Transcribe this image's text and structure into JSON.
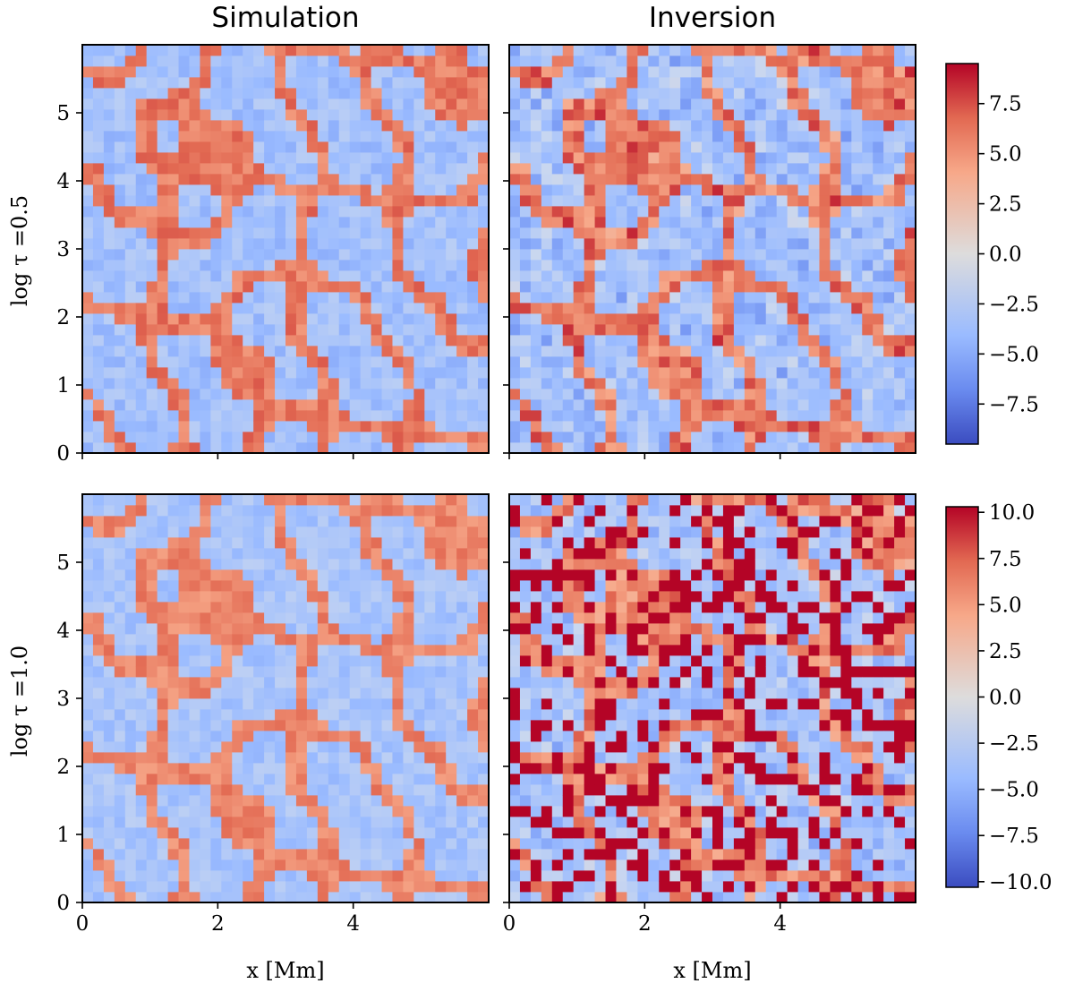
{
  "chart_data": {
    "type": "heatmap",
    "column_titles": [
      "Simulation",
      "Inversion"
    ],
    "row_labels": [
      "log τ =0.5",
      "log τ =1.0"
    ],
    "xlabel": "x [Mm]",
    "x_ticks": [
      "0",
      "2",
      "4"
    ],
    "y_ticks": [
      "0",
      "1",
      "2",
      "3",
      "4",
      "5"
    ],
    "xlim": [
      0,
      6
    ],
    "ylim": [
      0,
      6
    ],
    "colormap": [
      "#3b4cc0",
      "#6a8bef",
      "#9abbff",
      "#c9d7f0",
      "#ebd2c6",
      "#f7a889",
      "#e26952",
      "#b40426"
    ],
    "panels": [
      {
        "name": "simulation-top",
        "row": 0,
        "col": 0,
        "vmin": -9.5,
        "vmax": 9.5
      },
      {
        "name": "inversion-top",
        "row": 0,
        "col": 1,
        "vmin": -9.5,
        "vmax": 9.5
      },
      {
        "name": "simulation-bottom",
        "row": 1,
        "col": 0,
        "vmin": -10.3,
        "vmax": 10.3
      },
      {
        "name": "inversion-bottom",
        "row": 1,
        "col": 1,
        "vmin": -10.3,
        "vmax": 10.3
      }
    ],
    "colorbars": [
      {
        "row": 0,
        "vmin": -9.5,
        "vmax": 9.5,
        "ticks": [
          "7.5",
          "5.0",
          "2.5",
          "0.0",
          "−2.5",
          "−5.0",
          "−7.5"
        ],
        "tick_values": [
          7.5,
          5.0,
          2.5,
          0.0,
          -2.5,
          -5.0,
          -7.5
        ]
      },
      {
        "row": 1,
        "vmin": -10.3,
        "vmax": 10.3,
        "ticks": [
          "10.0",
          "7.5",
          "5.0",
          "2.5",
          "0.0",
          "−2.5",
          "−5.0",
          "−7.5",
          "−10.0"
        ],
        "tick_values": [
          10.0,
          7.5,
          5.0,
          2.5,
          0.0,
          -2.5,
          -5.0,
          -7.5,
          -10.0
        ]
      }
    ]
  }
}
